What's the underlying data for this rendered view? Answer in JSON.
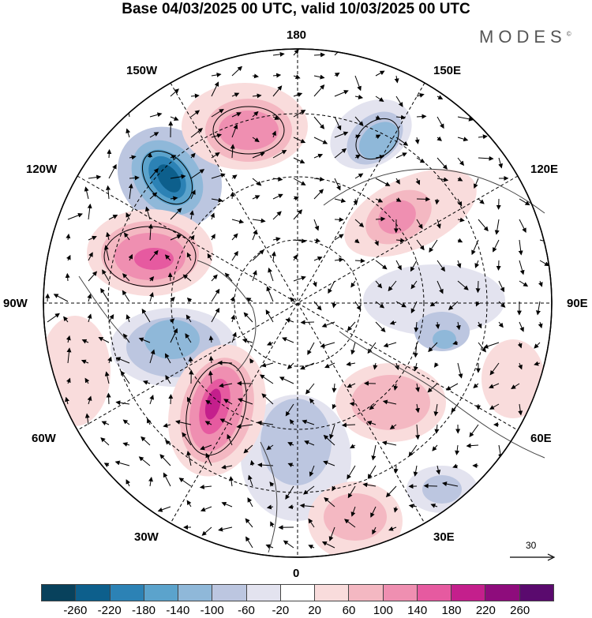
{
  "title": "Base 04/03/2025 00 UTC, valid 10/03/2025 00 UTC",
  "brand": "MODES",
  "brand_mark": "©",
  "lon_labels": {
    "top": "180",
    "bottom": "0",
    "left": "90W",
    "right": "90E",
    "nw": "150W",
    "ne": "150E",
    "wnw": "120W",
    "ene": "120E",
    "wsw": "60W",
    "ese": "60E",
    "sw": "30W",
    "se": "30E"
  },
  "reference_vector": "30",
  "colorbar": {
    "ticks": [
      "-260",
      "-220",
      "-180",
      "-140",
      "-100",
      "-60",
      "-20",
      "20",
      "60",
      "100",
      "140",
      "180",
      "220",
      "260"
    ],
    "colors": [
      "#08415c",
      "#0d5f8c",
      "#2c82b5",
      "#5ba3cc",
      "#8fb8d9",
      "#bcc6e0",
      "#e3e3ef",
      "#ffffff",
      "#f9dcdc",
      "#f4b8c2",
      "#ef8fb1",
      "#e65aa0",
      "#c41f8c",
      "#8e0c7c",
      "#5a0a6e"
    ]
  }
}
